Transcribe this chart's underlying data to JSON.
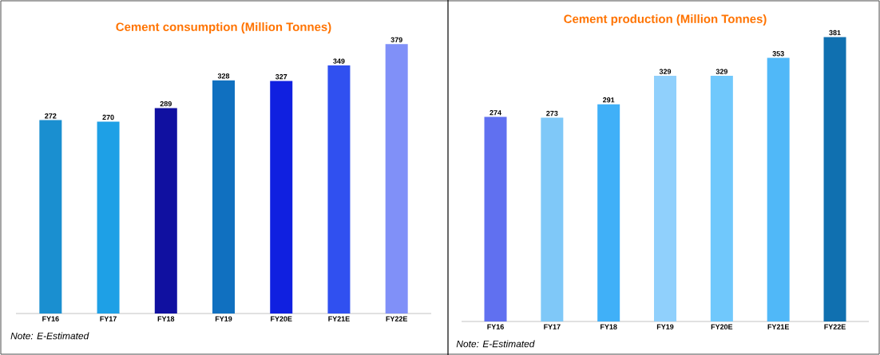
{
  "chart_data": [
    {
      "type": "bar",
      "title": "Cement consumption (Million Tonnes)",
      "categories": [
        "FY16",
        "FY17",
        "FY18",
        "FY19",
        "FY20E",
        "FY21E",
        "FY22E"
      ],
      "values": [
        272,
        270,
        289,
        328,
        327,
        349,
        379
      ],
      "colors": [
        "#1a8fd0",
        "#1ea0e6",
        "#1010a0",
        "#1070c0",
        "#1020e0",
        "#3050f0",
        "#8090f8"
      ],
      "data_labels": true,
      "annotations": [
        "Note: E-Estimated"
      ]
    },
    {
      "type": "bar",
      "title": "Cement production (Million Tonnes)",
      "categories": [
        "FY16",
        "FY17",
        "FY18",
        "FY19",
        "FY20E",
        "FY21E",
        "FY22E"
      ],
      "values": [
        274,
        273,
        291,
        329,
        329,
        353,
        381
      ],
      "colors": [
        "#6070f0",
        "#7fc8f8",
        "#40b0f8",
        "#90d0fc",
        "#70c8fc",
        "#50b8f8",
        "#1070b0"
      ],
      "data_labels": true,
      "annotations": [
        "Note: E-Estimated"
      ]
    }
  ]
}
